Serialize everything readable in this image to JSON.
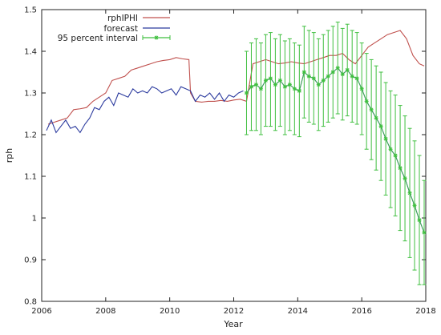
{
  "chart_data": {
    "type": "line",
    "title": "",
    "xlabel": "Year",
    "ylabel": "rph",
    "xlim": [
      2006,
      2018
    ],
    "ylim": [
      0.8,
      1.5
    ],
    "x_ticks": [
      2006,
      2008,
      2010,
      2012,
      2014,
      2016,
      2018
    ],
    "y_ticks": [
      0.8,
      0.9,
      1.0,
      1.1,
      1.2,
      1.3,
      1.4,
      1.5
    ],
    "x_tick_labels": [
      "2006",
      "2008",
      "2010",
      "2012",
      "2014",
      "2016",
      "2018"
    ],
    "y_tick_labels": [
      "0.8",
      "0.9",
      "1",
      "1.1",
      "1.2",
      "1.3",
      "1.4",
      "1.5"
    ],
    "grid": false,
    "legend_position": "top-left",
    "series": [
      {
        "name": "rphIPHI",
        "color": "#c0504d",
        "x": [
          2006.2,
          2006.4,
          2006.6,
          2006.8,
          2007.0,
          2007.2,
          2007.4,
          2007.6,
          2007.8,
          2008.0,
          2008.2,
          2008.4,
          2008.6,
          2008.8,
          2009.0,
          2009.2,
          2009.4,
          2009.6,
          2009.8,
          2010.0,
          2010.2,
          2010.4,
          2010.6,
          2010.65,
          2010.8,
          2011.0,
          2011.2,
          2011.4,
          2011.6,
          2011.8,
          2012.0,
          2012.2,
          2012.4,
          2012.6,
          2012.8,
          2013.0,
          2013.2,
          2013.4,
          2013.6,
          2013.8,
          2014.0,
          2014.2,
          2014.4,
          2014.6,
          2014.8,
          2015.0,
          2015.2,
          2015.4,
          2015.6,
          2015.8,
          2016.0,
          2016.2,
          2016.4,
          2016.6,
          2016.8,
          2017.0,
          2017.2,
          2017.4,
          2017.6,
          2017.8,
          2017.95
        ],
        "values": [
          1.225,
          1.23,
          1.235,
          1.24,
          1.26,
          1.262,
          1.265,
          1.28,
          1.29,
          1.3,
          1.33,
          1.335,
          1.34,
          1.355,
          1.36,
          1.365,
          1.37,
          1.375,
          1.378,
          1.38,
          1.385,
          1.382,
          1.38,
          1.3,
          1.28,
          1.278,
          1.28,
          1.28,
          1.282,
          1.28,
          1.283,
          1.285,
          1.28,
          1.37,
          1.375,
          1.38,
          1.375,
          1.37,
          1.372,
          1.375,
          1.372,
          1.37,
          1.375,
          1.38,
          1.385,
          1.39,
          1.39,
          1.395,
          1.38,
          1.37,
          1.39,
          1.41,
          1.42,
          1.43,
          1.44,
          1.445,
          1.45,
          1.43,
          1.39,
          1.37,
          1.365
        ]
      },
      {
        "name": "forecast",
        "color": "#2b3a9e",
        "x": [
          2006.15,
          2006.3,
          2006.45,
          2006.6,
          2006.75,
          2006.9,
          2007.05,
          2007.2,
          2007.35,
          2007.5,
          2007.65,
          2007.8,
          2007.95,
          2008.1,
          2008.25,
          2008.4,
          2008.55,
          2008.7,
          2008.85,
          2009.0,
          2009.15,
          2009.3,
          2009.45,
          2009.6,
          2009.75,
          2009.9,
          2010.05,
          2010.2,
          2010.35,
          2010.5,
          2010.65,
          2010.8,
          2010.95,
          2011.1,
          2011.25,
          2011.4,
          2011.55,
          2011.7,
          2011.85,
          2012.0,
          2012.15,
          2012.3
        ],
        "values": [
          1.21,
          1.235,
          1.205,
          1.22,
          1.235,
          1.215,
          1.22,
          1.205,
          1.225,
          1.24,
          1.265,
          1.26,
          1.28,
          1.29,
          1.27,
          1.3,
          1.295,
          1.29,
          1.31,
          1.3,
          1.305,
          1.3,
          1.315,
          1.31,
          1.3,
          1.305,
          1.31,
          1.295,
          1.315,
          1.31,
          1.305,
          1.28,
          1.295,
          1.29,
          1.3,
          1.285,
          1.3,
          1.28,
          1.295,
          1.29,
          1.3,
          1.305
        ]
      },
      {
        "name": "95 percent interval",
        "color": "#3fbf3f",
        "x": [
          2012.4,
          2012.55,
          2012.7,
          2012.85,
          2013.0,
          2013.15,
          2013.3,
          2013.45,
          2013.6,
          2013.75,
          2013.9,
          2014.05,
          2014.2,
          2014.35,
          2014.5,
          2014.65,
          2014.8,
          2014.95,
          2015.1,
          2015.25,
          2015.4,
          2015.55,
          2015.7,
          2015.85,
          2016.0,
          2016.15,
          2016.3,
          2016.45,
          2016.6,
          2016.75,
          2016.9,
          2017.05,
          2017.2,
          2017.35,
          2017.5,
          2017.65,
          2017.8,
          2017.95
        ],
        "values": [
          1.3,
          1.315,
          1.32,
          1.31,
          1.33,
          1.335,
          1.32,
          1.33,
          1.315,
          1.32,
          1.31,
          1.305,
          1.35,
          1.34,
          1.335,
          1.32,
          1.33,
          1.34,
          1.35,
          1.36,
          1.345,
          1.355,
          1.34,
          1.335,
          1.31,
          1.28,
          1.26,
          1.24,
          1.22,
          1.19,
          1.165,
          1.15,
          1.12,
          1.095,
          1.06,
          1.03,
          0.995,
          0.965
        ],
        "lower": [
          1.2,
          1.21,
          1.21,
          1.2,
          1.22,
          1.22,
          1.21,
          1.22,
          1.2,
          1.21,
          1.2,
          1.195,
          1.24,
          1.23,
          1.225,
          1.21,
          1.22,
          1.23,
          1.24,
          1.25,
          1.235,
          1.245,
          1.23,
          1.225,
          1.2,
          1.165,
          1.14,
          1.115,
          1.09,
          1.055,
          1.025,
          1.005,
          0.97,
          0.945,
          0.905,
          0.875,
          0.84,
          0.84
        ],
        "upper": [
          1.4,
          1.42,
          1.43,
          1.42,
          1.44,
          1.445,
          1.43,
          1.44,
          1.425,
          1.43,
          1.42,
          1.415,
          1.46,
          1.45,
          1.445,
          1.43,
          1.44,
          1.45,
          1.46,
          1.47,
          1.455,
          1.465,
          1.45,
          1.445,
          1.42,
          1.395,
          1.38,
          1.365,
          1.35,
          1.325,
          1.305,
          1.295,
          1.27,
          1.245,
          1.215,
          1.185,
          1.15,
          1.09
        ]
      }
    ]
  }
}
